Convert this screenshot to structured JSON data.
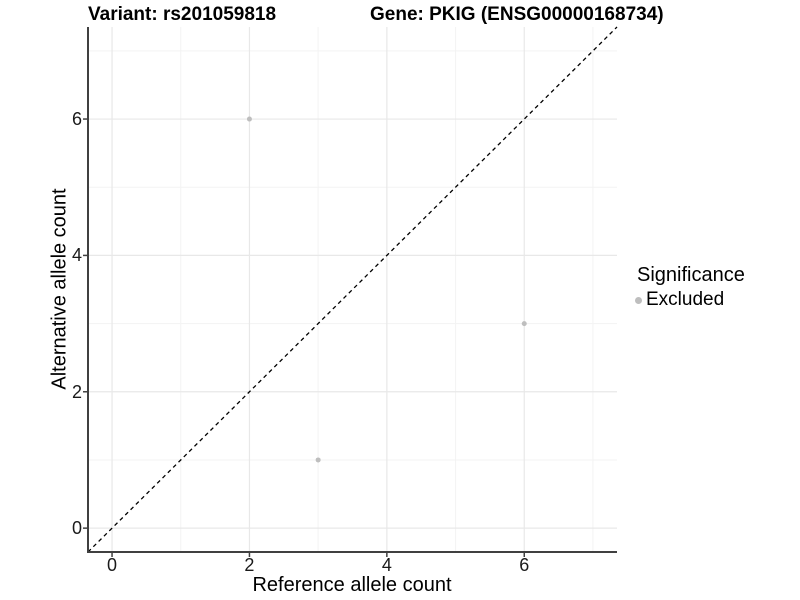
{
  "title": {
    "variant": "Variant: rs201059818",
    "gene": "Gene: PKIG (ENSG00000168734)"
  },
  "legend": {
    "title": "Significance",
    "items": [
      {
        "label": "Excluded",
        "color": "#bebebe",
        "marker": "dot-icon"
      }
    ]
  },
  "chart_data": {
    "type": "scatter",
    "title": "Variant: rs201059818 | Gene: PKIG (ENSG00000168734)",
    "xlabel": "Reference allele count",
    "ylabel": "Alternative allele count",
    "xlim": [
      -0.35,
      7.35
    ],
    "ylim": [
      -0.35,
      7.35
    ],
    "x_ticks": [
      0,
      2,
      4,
      6
    ],
    "y_ticks": [
      0,
      2,
      4,
      6
    ],
    "x_minor_ticks": [
      1,
      3,
      5,
      7
    ],
    "y_minor_ticks": [
      1,
      3,
      5,
      7
    ],
    "grid": true,
    "legend_position": "right",
    "series": [
      {
        "name": "Excluded",
        "color": "#bebebe",
        "points": [
          [
            2,
            6
          ],
          [
            6,
            3
          ],
          [
            3,
            1
          ]
        ]
      }
    ],
    "identity_line": {
      "style": "dashed",
      "color": "#000000",
      "from": [
        -0.35,
        -0.35
      ],
      "to": [
        7.35,
        7.35
      ]
    }
  },
  "colors": {
    "background": "#ffffff",
    "grid_major": "#e8e8e8",
    "grid_minor": "#f3f3f3",
    "axis_line": "#404040",
    "tick_mark": "#404040",
    "text": "#000000",
    "excluded_point": "#bebebe"
  }
}
